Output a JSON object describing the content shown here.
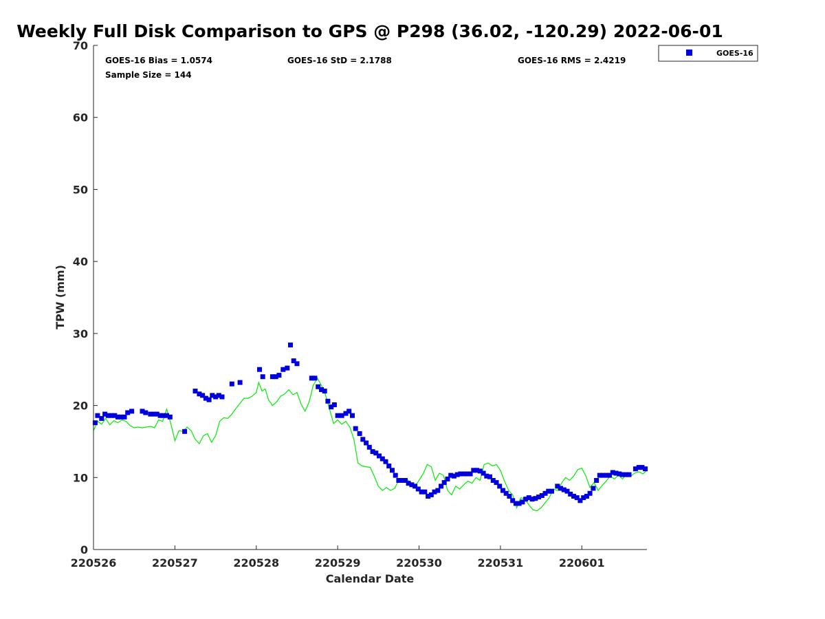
{
  "chart_data": {
    "type": "scatter",
    "title": "Weekly Full Disk Comparison to GPS @ P298 (36.02, -120.29) 2022-06-01",
    "xlabel": "Calendar Date",
    "ylabel": "TPW (mm)",
    "xlim": [
      0,
      6.8
    ],
    "ylim": [
      0,
      70
    ],
    "x_unit": "days from 220526",
    "x_ticks": [
      {
        "value": 0,
        "label": "220526"
      },
      {
        "value": 1,
        "label": "220527"
      },
      {
        "value": 2,
        "label": "220528"
      },
      {
        "value": 3,
        "label": "220529"
      },
      {
        "value": 4,
        "label": "220530"
      },
      {
        "value": 5,
        "label": "220531"
      },
      {
        "value": 6,
        "label": "220601"
      }
    ],
    "y_ticks": [
      {
        "value": 0,
        "label": "0"
      },
      {
        "value": 10,
        "label": "10"
      },
      {
        "value": 20,
        "label": "20"
      },
      {
        "value": 30,
        "label": "30"
      },
      {
        "value": 40,
        "label": "40"
      },
      {
        "value": 50,
        "label": "50"
      },
      {
        "value": 60,
        "label": "60"
      },
      {
        "value": 70,
        "label": "70"
      }
    ],
    "stats": {
      "bias": "GOES-16 Bias = 1.0574",
      "std": "GOES-16 StD = 2.1788",
      "rms": "GOES-16 RMS = 2.4219",
      "sample": "Sample Size = 144"
    },
    "legend": {
      "label": "GOES-16",
      "placement": "top-right, outside plot"
    },
    "grid": false,
    "series": [
      {
        "name": "GOES-16",
        "style": "square markers",
        "color": "#0000dd",
        "points": [
          [
            0.02,
            17.6
          ],
          [
            0.05,
            18.6
          ],
          [
            0.1,
            18.2
          ],
          [
            0.14,
            18.8
          ],
          [
            0.18,
            18.6
          ],
          [
            0.22,
            18.6
          ],
          [
            0.26,
            18.6
          ],
          [
            0.3,
            18.4
          ],
          [
            0.34,
            18.4
          ],
          [
            0.38,
            18.4
          ],
          [
            0.42,
            19
          ],
          [
            0.47,
            19.2
          ],
          [
            0.6,
            19.2
          ],
          [
            0.64,
            19
          ],
          [
            0.7,
            18.8
          ],
          [
            0.74,
            18.8
          ],
          [
            0.78,
            18.8
          ],
          [
            0.82,
            18.6
          ],
          [
            0.86,
            18.6
          ],
          [
            0.9,
            18.6
          ],
          [
            0.94,
            18.4
          ],
          [
            1.12,
            16.4
          ],
          [
            1.25,
            22
          ],
          [
            1.3,
            21.6
          ],
          [
            1.34,
            21.4
          ],
          [
            1.38,
            21
          ],
          [
            1.42,
            20.8
          ],
          [
            1.46,
            21.4
          ],
          [
            1.5,
            21.2
          ],
          [
            1.54,
            21.4
          ],
          [
            1.58,
            21.2
          ],
          [
            1.7,
            23
          ],
          [
            1.8,
            23.2
          ],
          [
            2.04,
            25
          ],
          [
            2.08,
            24
          ],
          [
            2.2,
            24
          ],
          [
            2.24,
            24
          ],
          [
            2.28,
            24.2
          ],
          [
            2.33,
            25
          ],
          [
            2.38,
            25.2
          ],
          [
            2.42,
            28.4
          ],
          [
            2.46,
            26.2
          ],
          [
            2.5,
            25.8
          ],
          [
            2.68,
            23.8
          ],
          [
            2.72,
            23.8
          ],
          [
            2.76,
            22.6
          ],
          [
            2.8,
            22.2
          ],
          [
            2.84,
            22
          ],
          [
            2.88,
            20.6
          ],
          [
            2.92,
            19.8
          ],
          [
            2.96,
            20.1
          ],
          [
            3.0,
            18.6
          ],
          [
            3.05,
            18.6
          ],
          [
            3.1,
            18.9
          ],
          [
            3.14,
            19.2
          ],
          [
            3.18,
            18.6
          ],
          [
            3.22,
            16.8
          ],
          [
            3.27,
            16.1
          ],
          [
            3.31,
            15.3
          ],
          [
            3.35,
            14.8
          ],
          [
            3.39,
            14.2
          ],
          [
            3.43,
            13.6
          ],
          [
            3.47,
            13.4
          ],
          [
            3.51,
            13
          ],
          [
            3.55,
            12.6
          ],
          [
            3.59,
            12.2
          ],
          [
            3.63,
            11.6
          ],
          [
            3.67,
            11
          ],
          [
            3.71,
            10.3
          ],
          [
            3.75,
            9.6
          ],
          [
            3.79,
            9.6
          ],
          [
            3.83,
            9.6
          ],
          [
            3.87,
            9.2
          ],
          [
            3.91,
            9
          ],
          [
            3.95,
            8.8
          ],
          [
            3.99,
            8.4
          ],
          [
            4.03,
            8
          ],
          [
            4.07,
            8
          ],
          [
            4.11,
            7.4
          ],
          [
            4.15,
            7.6
          ],
          [
            4.19,
            8
          ],
          [
            4.23,
            8.2
          ],
          [
            4.27,
            8.8
          ],
          [
            4.31,
            9.3
          ],
          [
            4.35,
            9.8
          ],
          [
            4.39,
            10.3
          ],
          [
            4.43,
            10.2
          ],
          [
            4.47,
            10.4
          ],
          [
            4.51,
            10.5
          ],
          [
            4.55,
            10.5
          ],
          [
            4.59,
            10.5
          ],
          [
            4.63,
            10.5
          ],
          [
            4.67,
            11
          ],
          [
            4.71,
            11
          ],
          [
            4.75,
            10.9
          ],
          [
            4.79,
            10.6
          ],
          [
            4.83,
            10.2
          ],
          [
            4.87,
            10.1
          ],
          [
            4.91,
            9.6
          ],
          [
            4.95,
            9.3
          ],
          [
            4.99,
            8.8
          ],
          [
            5.03,
            8.2
          ],
          [
            5.07,
            7.8
          ],
          [
            5.11,
            7.4
          ],
          [
            5.15,
            6.8
          ],
          [
            5.19,
            6.4
          ],
          [
            5.23,
            6.4
          ],
          [
            5.27,
            6.6
          ],
          [
            5.31,
            7
          ],
          [
            5.35,
            7.2
          ],
          [
            5.39,
            7
          ],
          [
            5.43,
            7.1
          ],
          [
            5.47,
            7.3
          ],
          [
            5.51,
            7.5
          ],
          [
            5.55,
            7.8
          ],
          [
            5.59,
            8.1
          ],
          [
            5.63,
            8.1
          ],
          [
            5.7,
            8.8
          ],
          [
            5.74,
            8.5
          ],
          [
            5.78,
            8.3
          ],
          [
            5.82,
            8.1
          ],
          [
            5.86,
            7.7
          ],
          [
            5.9,
            7.4
          ],
          [
            5.94,
            7.2
          ],
          [
            5.98,
            6.8
          ],
          [
            6.02,
            7.2
          ],
          [
            6.06,
            7.4
          ],
          [
            6.1,
            7.8
          ],
          [
            6.14,
            8.5
          ],
          [
            6.18,
            9.6
          ],
          [
            6.22,
            10.3
          ],
          [
            6.26,
            10.3
          ],
          [
            6.3,
            10.3
          ],
          [
            6.34,
            10.3
          ],
          [
            6.38,
            10.7
          ],
          [
            6.42,
            10.6
          ],
          [
            6.46,
            10.5
          ],
          [
            6.5,
            10.4
          ],
          [
            6.54,
            10.4
          ],
          [
            6.58,
            10.4
          ],
          [
            6.66,
            11.2
          ],
          [
            6.7,
            11.4
          ],
          [
            6.74,
            11.4
          ],
          [
            6.78,
            11.2
          ]
        ]
      },
      {
        "name": "GPS",
        "style": "line",
        "color": "#00ee00",
        "points": [
          [
            0,
            16.5
          ],
          [
            0.05,
            17.8
          ],
          [
            0.1,
            17.4
          ],
          [
            0.15,
            18.2
          ],
          [
            0.2,
            17.3
          ],
          [
            0.25,
            17.9
          ],
          [
            0.3,
            17.6
          ],
          [
            0.35,
            18
          ],
          [
            0.4,
            17.8
          ],
          [
            0.45,
            17.2
          ],
          [
            0.5,
            16.9
          ],
          [
            0.55,
            17
          ],
          [
            0.6,
            16.9
          ],
          [
            0.65,
            17
          ],
          [
            0.7,
            17.1
          ],
          [
            0.75,
            16.9
          ],
          [
            0.8,
            18
          ],
          [
            0.85,
            17.8
          ],
          [
            0.9,
            19.5
          ],
          [
            0.95,
            17.5
          ],
          [
            1.0,
            15.1
          ],
          [
            1.05,
            16.5
          ],
          [
            1.1,
            16.4
          ],
          [
            1.15,
            17
          ],
          [
            1.2,
            16.5
          ],
          [
            1.25,
            15.3
          ],
          [
            1.3,
            14.7
          ],
          [
            1.35,
            15.8
          ],
          [
            1.4,
            16.1
          ],
          [
            1.45,
            14.9
          ],
          [
            1.5,
            15.8
          ],
          [
            1.55,
            17.8
          ],
          [
            1.6,
            18.3
          ],
          [
            1.65,
            18.2
          ],
          [
            1.7,
            18.8
          ],
          [
            1.75,
            19.6
          ],
          [
            1.8,
            20.3
          ],
          [
            1.85,
            21
          ],
          [
            1.9,
            21
          ],
          [
            1.95,
            21.3
          ],
          [
            2.0,
            21.8
          ],
          [
            2.03,
            23.2
          ],
          [
            2.07,
            22
          ],
          [
            2.11,
            22.3
          ],
          [
            2.15,
            20.8
          ],
          [
            2.2,
            20
          ],
          [
            2.25,
            20.5
          ],
          [
            2.3,
            21.3
          ],
          [
            2.35,
            21.6
          ],
          [
            2.4,
            22.2
          ],
          [
            2.45,
            21.5
          ],
          [
            2.5,
            21.8
          ],
          [
            2.55,
            20.2
          ],
          [
            2.6,
            19.2
          ],
          [
            2.65,
            20.5
          ],
          [
            2.7,
            22.8
          ],
          [
            2.75,
            23.8
          ],
          [
            2.8,
            22.8
          ],
          [
            2.85,
            21.5
          ],
          [
            2.9,
            19.5
          ],
          [
            2.95,
            17.5
          ],
          [
            3.0,
            18
          ],
          [
            3.05,
            17.4
          ],
          [
            3.1,
            17.8
          ],
          [
            3.15,
            17
          ],
          [
            3.2,
            15.3
          ],
          [
            3.25,
            12
          ],
          [
            3.3,
            11.6
          ],
          [
            3.35,
            11.5
          ],
          [
            3.4,
            11.4
          ],
          [
            3.45,
            10.2
          ],
          [
            3.5,
            8.8
          ],
          [
            3.55,
            8.2
          ],
          [
            3.6,
            8.6
          ],
          [
            3.65,
            8.2
          ],
          [
            3.7,
            8.5
          ],
          [
            3.75,
            9.6
          ],
          [
            3.8,
            9.4
          ],
          [
            3.85,
            9.8
          ],
          [
            3.9,
            9.2
          ],
          [
            3.95,
            8.8
          ],
          [
            4.0,
            9.6
          ],
          [
            4.05,
            10.5
          ],
          [
            4.1,
            11.8
          ],
          [
            4.15,
            11.5
          ],
          [
            4.2,
            9.6
          ],
          [
            4.25,
            10.6
          ],
          [
            4.3,
            10.3
          ],
          [
            4.35,
            8.2
          ],
          [
            4.4,
            7.6
          ],
          [
            4.45,
            8.8
          ],
          [
            4.5,
            8.4
          ],
          [
            4.55,
            9
          ],
          [
            4.6,
            9.5
          ],
          [
            4.65,
            9.2
          ],
          [
            4.7,
            10
          ],
          [
            4.75,
            9.6
          ],
          [
            4.8,
            11.8
          ],
          [
            4.85,
            12
          ],
          [
            4.9,
            11.6
          ],
          [
            4.95,
            11.8
          ],
          [
            5.0,
            11
          ],
          [
            5.05,
            9.5
          ],
          [
            5.1,
            8.2
          ],
          [
            5.15,
            7.6
          ],
          [
            5.2,
            5.8
          ],
          [
            5.25,
            7.2
          ],
          [
            5.3,
            7
          ],
          [
            5.35,
            6.2
          ],
          [
            5.4,
            5.5
          ],
          [
            5.45,
            5.4
          ],
          [
            5.5,
            5.8
          ],
          [
            5.55,
            6.5
          ],
          [
            5.6,
            7.2
          ],
          [
            5.65,
            8.4
          ],
          [
            5.7,
            8.2
          ],
          [
            5.75,
            9.2
          ],
          [
            5.8,
            10
          ],
          [
            5.85,
            9.6
          ],
          [
            5.9,
            10.2
          ],
          [
            5.95,
            11.1
          ],
          [
            6.0,
            11.3
          ],
          [
            6.05,
            10.2
          ],
          [
            6.1,
            8.6
          ],
          [
            6.15,
            9.3
          ],
          [
            6.2,
            8.2
          ],
          [
            6.25,
            8.9
          ],
          [
            6.3,
            9.5
          ],
          [
            6.35,
            10.2
          ],
          [
            6.4,
            9.8
          ],
          [
            6.45,
            10.3
          ],
          [
            6.5,
            9.8
          ],
          [
            6.55,
            10.5
          ],
          [
            6.6,
            10.2
          ],
          [
            6.65,
            10.6
          ],
          [
            6.7,
            10.8
          ],
          [
            6.75,
            10.5
          ],
          [
            6.8,
            11
          ]
        ]
      }
    ]
  }
}
